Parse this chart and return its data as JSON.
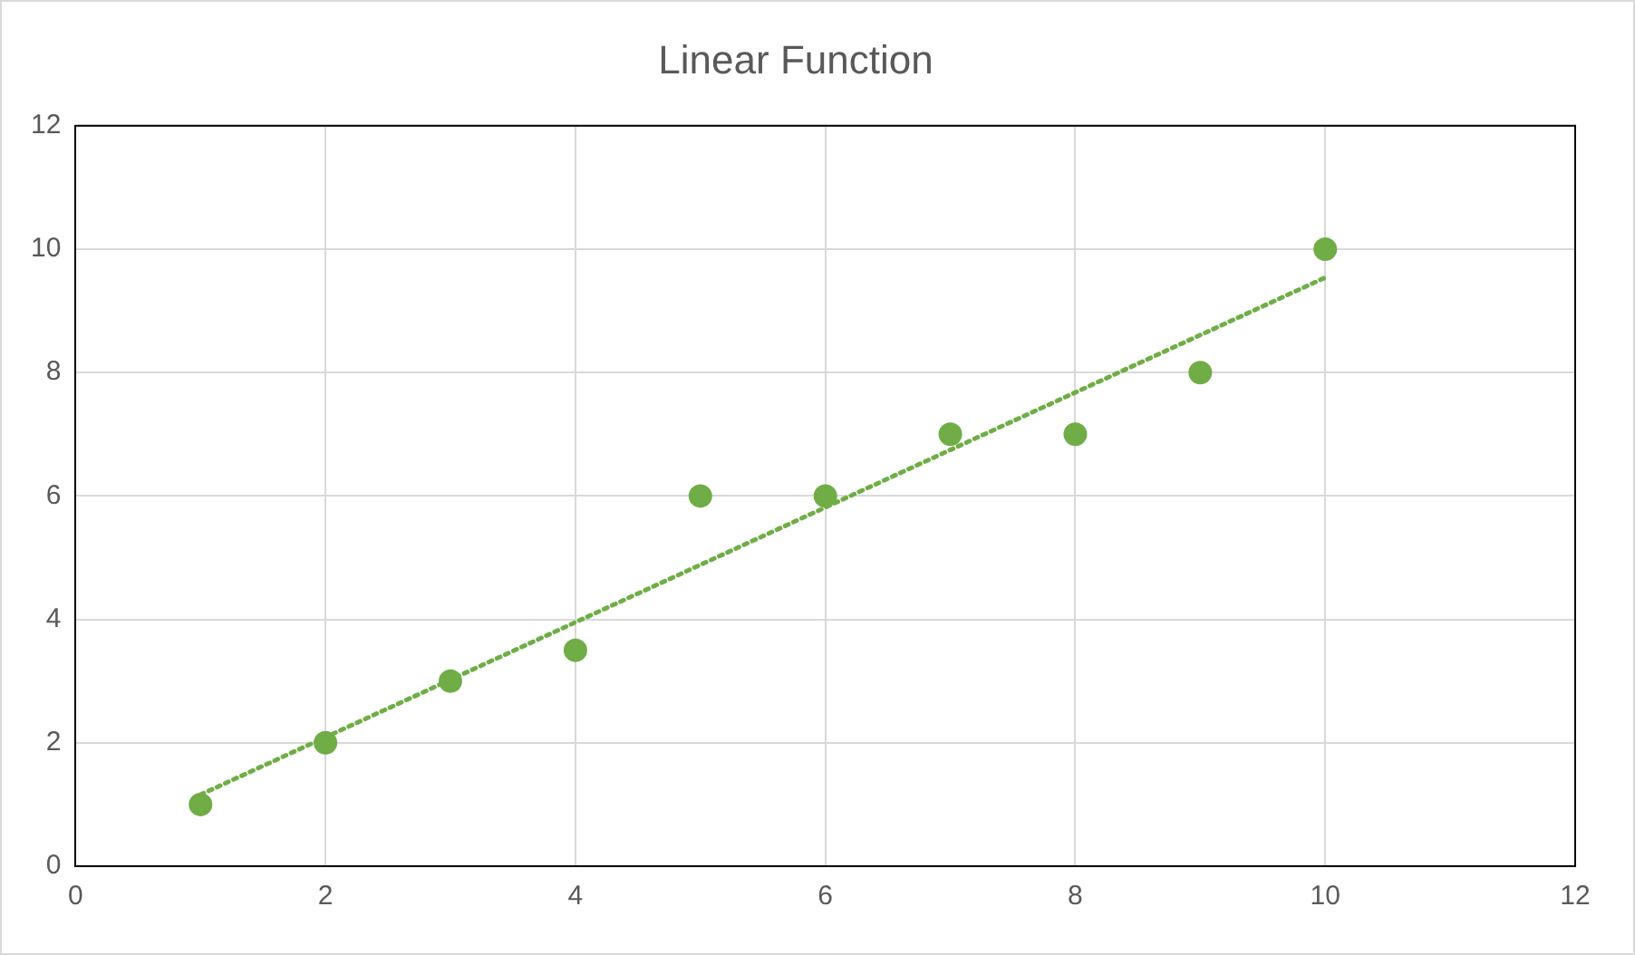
{
  "chart_data": {
    "type": "scatter",
    "title": "Linear Function",
    "x": [
      1,
      2,
      3,
      4,
      5,
      6,
      7,
      8,
      9,
      10
    ],
    "series": [
      {
        "type": "scatter",
        "color": "#70ad47",
        "marker": "circle",
        "values": [
          1,
          2,
          3,
          3.5,
          6,
          6,
          7,
          7,
          8,
          10
        ]
      },
      {
        "type": "line",
        "color": "#70ad47",
        "marker": "none",
        "line_style": "dotted",
        "x": [
          1,
          10
        ],
        "values": [
          1.16,
          9.54
        ]
      }
    ],
    "xlim": [
      0,
      12
    ],
    "xticks": [
      0,
      2,
      4,
      6,
      8,
      10,
      12
    ],
    "ylim": [
      0,
      12
    ],
    "yticks": [
      0,
      2,
      4,
      6,
      8,
      10,
      12
    ],
    "grid": true,
    "legend": false
  }
}
